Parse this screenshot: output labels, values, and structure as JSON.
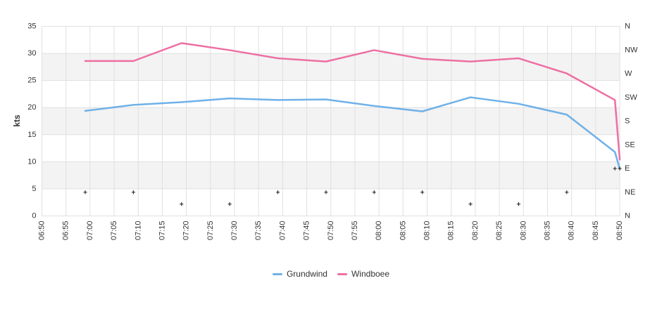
{
  "chart_data": {
    "type": "line",
    "title": "",
    "ylabel": "kts",
    "x_axis": {
      "start": "06:50",
      "end": "08:50",
      "tick_interval_minutes": 5,
      "ticks": [
        "06:50",
        "06:55",
        "07:00",
        "07:05",
        "07:10",
        "07:15",
        "07:20",
        "07:25",
        "07:30",
        "07:35",
        "07:40",
        "07:45",
        "07:50",
        "07:55",
        "08:00",
        "08:05",
        "08:10",
        "08:15",
        "08:20",
        "08:25",
        "08:30",
        "08:35",
        "08:40",
        "08:45",
        "08:50"
      ]
    },
    "y_axis_left": {
      "label": "kts",
      "min": 0,
      "max": 35,
      "ticks": [
        0,
        5,
        10,
        15,
        20,
        25,
        30,
        35
      ]
    },
    "y_axis_right": {
      "type": "compass",
      "labels": [
        "N",
        "NW",
        "W",
        "SW",
        "S",
        "SE",
        "E",
        "NE",
        "N"
      ],
      "degrees": [
        360,
        315,
        270,
        225,
        180,
        135,
        90,
        45,
        0
      ]
    },
    "x": [
      "06:59",
      "07:09",
      "07:19",
      "07:29",
      "07:39",
      "07:49",
      "07:59",
      "08:09",
      "08:19",
      "08:29",
      "08:39",
      "08:49",
      "08:50"
    ],
    "series": [
      {
        "name": "Grundwind",
        "color": "#6fb1e8",
        "values": [
          19.4,
          20.5,
          21.0,
          21.7,
          21.4,
          21.5,
          20.3,
          19.3,
          21.9,
          20.7,
          18.7,
          11.8,
          8.7
        ]
      },
      {
        "name": "Windboee",
        "color": "#ed6fa3",
        "values": [
          28.6,
          28.6,
          31.9,
          30.6,
          29.1,
          28.5,
          30.6,
          29.0,
          28.5,
          29.1,
          26.3,
          21.4,
          10.4
        ]
      }
    ],
    "wind_direction_markers": {
      "marker": "plus",
      "color": "#222222",
      "points": [
        {
          "time": "06:59",
          "direction": "NE"
        },
        {
          "time": "07:09",
          "direction": "NE"
        },
        {
          "time": "07:19",
          "direction": "NNE"
        },
        {
          "time": "07:29",
          "direction": "NNE"
        },
        {
          "time": "07:39",
          "direction": "NE"
        },
        {
          "time": "07:49",
          "direction": "NE"
        },
        {
          "time": "07:59",
          "direction": "NE"
        },
        {
          "time": "08:09",
          "direction": "NE"
        },
        {
          "time": "08:19",
          "direction": "NNE"
        },
        {
          "time": "08:29",
          "direction": "NNE"
        },
        {
          "time": "08:39",
          "direction": "NE"
        },
        {
          "time": "08:49",
          "direction": "E"
        },
        {
          "time": "08:50",
          "direction": "E"
        }
      ]
    },
    "grid": {
      "line_color": "#e0e0e0",
      "band_color": "#f3f3f3",
      "alternating_bands": [
        [
          5,
          10
        ],
        [
          15,
          20
        ],
        [
          25,
          30
        ]
      ]
    }
  },
  "legend": {
    "items": [
      {
        "label": "Grundwind",
        "color": "#6fb1e8"
      },
      {
        "label": "Windboee",
        "color": "#ed6fa3"
      }
    ]
  },
  "styles": {
    "text_color": "#333333"
  }
}
